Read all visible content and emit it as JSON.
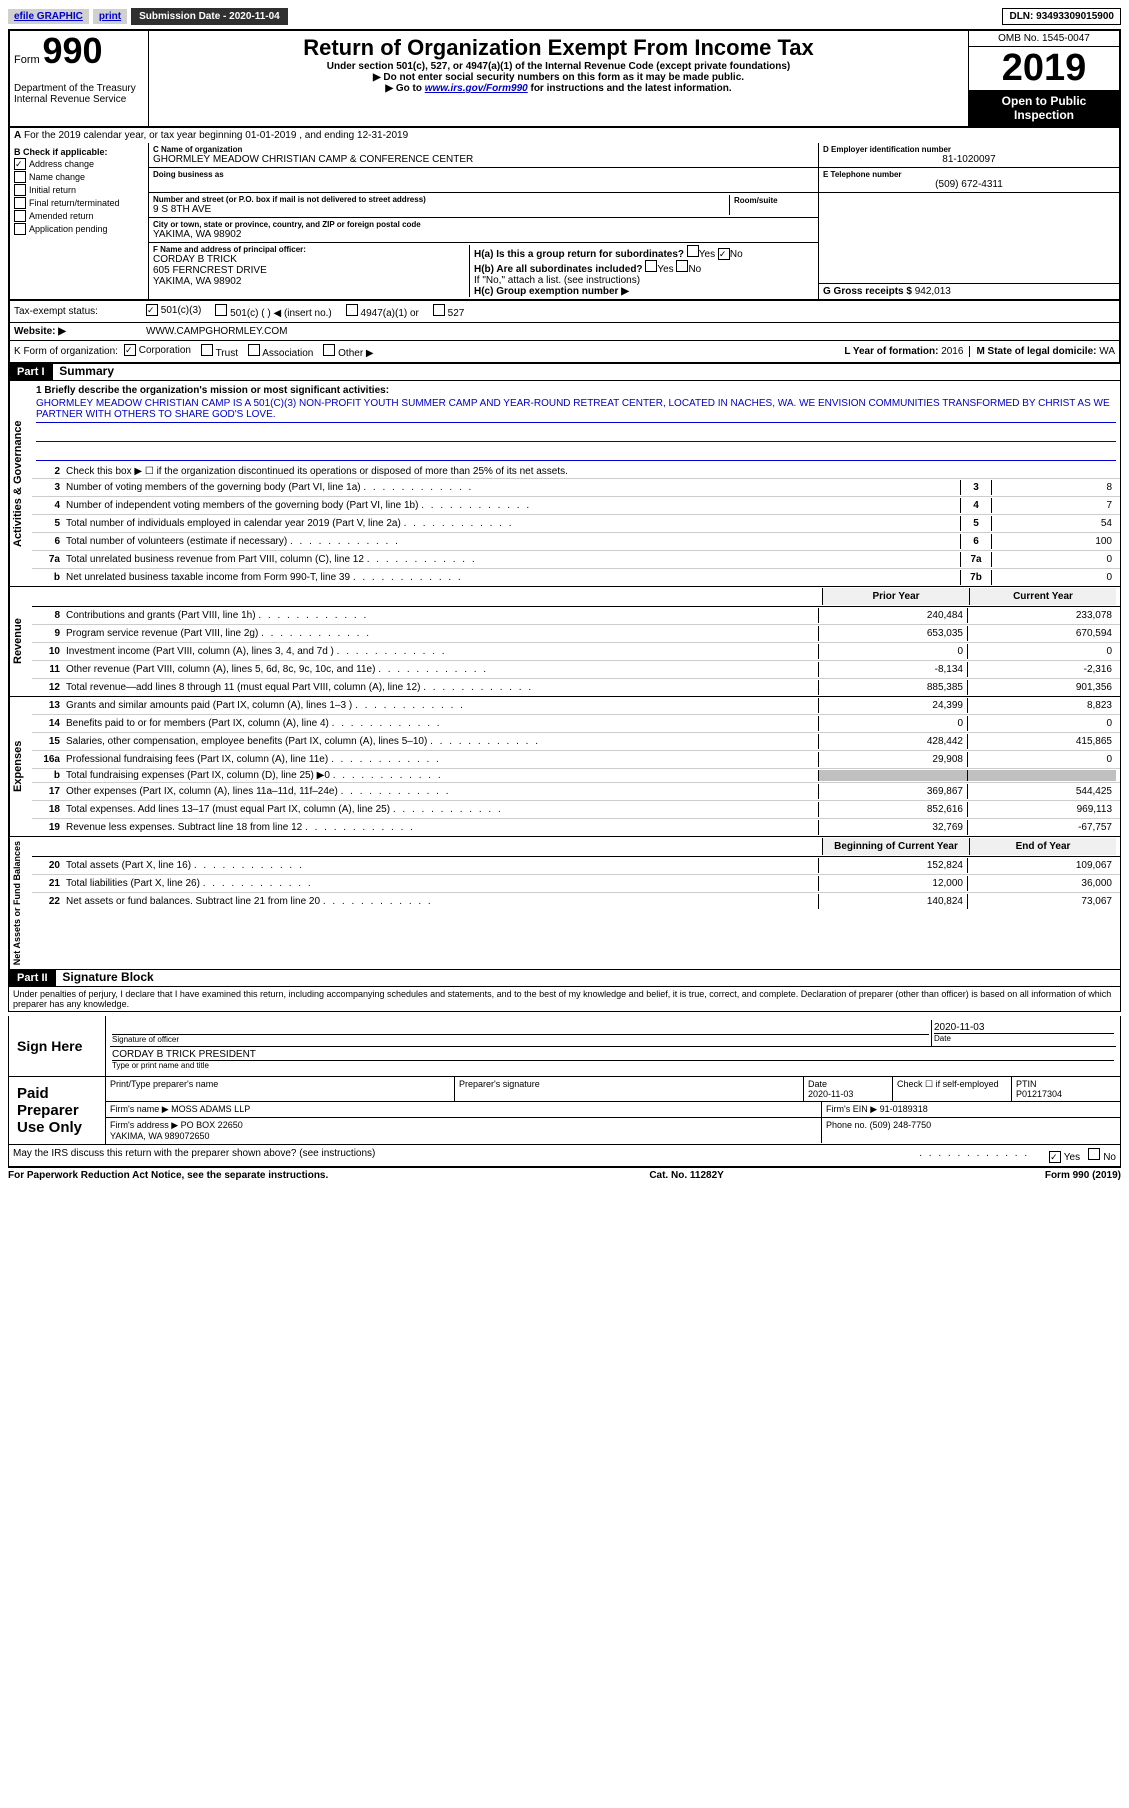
{
  "top": {
    "efile": "efile GRAPHIC",
    "print": "print",
    "sub_date_label": "Submission Date - 2020-11-04",
    "dln": "DLN: 93493309015900"
  },
  "header": {
    "form_label": "Form",
    "form_num": "990",
    "dept": "Department of the Treasury\nInternal Revenue Service",
    "title": "Return of Organization Exempt From Income Tax",
    "subtitle": "Under section 501(c), 527, or 4947(a)(1) of the Internal Revenue Code (except private foundations)",
    "arrow1": "▶ Do not enter social security numbers on this form as it may be made public.",
    "arrow2_pre": "▶ Go to ",
    "arrow2_link": "www.irs.gov/Form990",
    "arrow2_post": " for instructions and the latest information.",
    "omb": "OMB No. 1545-0047",
    "year": "2019",
    "open": "Open to Public Inspection"
  },
  "line_a": "For the 2019 calendar year, or tax year beginning 01-01-2019   , and ending 12-31-2019",
  "section_b": {
    "header": "B Check if applicable:",
    "items": [
      {
        "label": "Address change",
        "checked": true
      },
      {
        "label": "Name change",
        "checked": false
      },
      {
        "label": "Initial return",
        "checked": false
      },
      {
        "label": "Final return/terminated",
        "checked": false
      },
      {
        "label": "Amended return",
        "checked": false
      },
      {
        "label": "Application pending",
        "checked": false
      }
    ],
    "c_label": "C Name of organization",
    "c_name": "GHORMLEY MEADOW CHRISTIAN CAMP & CONFERENCE CENTER",
    "dba_label": "Doing business as",
    "addr_label": "Number and street (or P.O. box if mail is not delivered to street address)",
    "room_label": "Room/suite",
    "addr": "9 S 8TH AVE",
    "city_label": "City or town, state or province, country, and ZIP or foreign postal code",
    "city": "YAKIMA, WA  98902",
    "d_label": "D Employer identification number",
    "d_val": "81-1020097",
    "e_label": "E Telephone number",
    "e_val": "(509) 672-4311",
    "g_label": "G Gross receipts $",
    "g_val": "942,013",
    "f_label": "F  Name and address of principal officer:",
    "f_val": "CORDAY B TRICK\n605 FERNCREST DRIVE\nYAKIMA, WA  98902",
    "h_a": "H(a)  Is this a group return for subordinates?",
    "h_a_yes": "Yes",
    "h_a_no": "No",
    "h_b": "H(b)  Are all subordinates included?",
    "h_b_note": "If \"No,\" attach a list. (see instructions)",
    "h_c": "H(c)  Group exemption number ▶"
  },
  "tax_status": {
    "label": "Tax-exempt status:",
    "opts": [
      "501(c)(3)",
      "501(c) (  ) ◀ (insert no.)",
      "4947(a)(1) or",
      "527"
    ],
    "checked_idx": 0
  },
  "website": {
    "label": "Website: ▶",
    "val": "WWW.CAMPGHORMLEY.COM"
  },
  "k_line": {
    "label": "K Form of organization:",
    "opts": [
      "Corporation",
      "Trust",
      "Association",
      "Other ▶"
    ],
    "checked_idx": 0,
    "l_label": "L Year of formation:",
    "l_val": "2016",
    "m_label": "M State of legal domicile:",
    "m_val": "WA"
  },
  "part1": {
    "header": "Part I",
    "title": "Summary",
    "mission_label": "1  Briefly describe the organization's mission or most significant activities:",
    "mission": "GHORMLEY MEADOW CHRISTIAN CAMP IS A 501(C)(3) NON-PROFIT YOUTH SUMMER CAMP AND YEAR-ROUND RETREAT CENTER, LOCATED IN NACHES, WA. WE ENVISION COMMUNITIES TRANSFORMED BY CHRIST AS WE PARTNER WITH OTHERS TO SHARE GOD'S LOVE.",
    "governance": [
      {
        "n": "2",
        "desc": "Check this box ▶ ☐  if the organization discontinued its operations or disposed of more than 25% of its net assets.",
        "ref": "",
        "val": ""
      },
      {
        "n": "3",
        "desc": "Number of voting members of the governing body (Part VI, line 1a)",
        "ref": "3",
        "val": "8"
      },
      {
        "n": "4",
        "desc": "Number of independent voting members of the governing body (Part VI, line 1b)",
        "ref": "4",
        "val": "7"
      },
      {
        "n": "5",
        "desc": "Total number of individuals employed in calendar year 2019 (Part V, line 2a)",
        "ref": "5",
        "val": "54"
      },
      {
        "n": "6",
        "desc": "Total number of volunteers (estimate if necessary)",
        "ref": "6",
        "val": "100"
      },
      {
        "n": "7a",
        "desc": "Total unrelated business revenue from Part VIII, column (C), line 12",
        "ref": "7a",
        "val": "0"
      },
      {
        "n": "b",
        "desc": "Net unrelated business taxable income from Form 990-T, line 39",
        "ref": "7b",
        "val": "0"
      }
    ],
    "prior_hdr": "Prior Year",
    "curr_hdr": "Current Year",
    "revenue": [
      {
        "n": "8",
        "desc": "Contributions and grants (Part VIII, line 1h)",
        "p": "240,484",
        "c": "233,078"
      },
      {
        "n": "9",
        "desc": "Program service revenue (Part VIII, line 2g)",
        "p": "653,035",
        "c": "670,594"
      },
      {
        "n": "10",
        "desc": "Investment income (Part VIII, column (A), lines 3, 4, and 7d )",
        "p": "0",
        "c": "0"
      },
      {
        "n": "11",
        "desc": "Other revenue (Part VIII, column (A), lines 5, 6d, 8c, 9c, 10c, and 11e)",
        "p": "-8,134",
        "c": "-2,316"
      },
      {
        "n": "12",
        "desc": "Total revenue—add lines 8 through 11 (must equal Part VIII, column (A), line 12)",
        "p": "885,385",
        "c": "901,356"
      }
    ],
    "expenses": [
      {
        "n": "13",
        "desc": "Grants and similar amounts paid (Part IX, column (A), lines 1–3 )",
        "p": "24,399",
        "c": "8,823"
      },
      {
        "n": "14",
        "desc": "Benefits paid to or for members (Part IX, column (A), line 4)",
        "p": "0",
        "c": "0"
      },
      {
        "n": "15",
        "desc": "Salaries, other compensation, employee benefits (Part IX, column (A), lines 5–10)",
        "p": "428,442",
        "c": "415,865"
      },
      {
        "n": "16a",
        "desc": "Professional fundraising fees (Part IX, column (A), line 11e)",
        "p": "29,908",
        "c": "0"
      },
      {
        "n": "b",
        "desc": "Total fundraising expenses (Part IX, column (D), line 25) ▶0",
        "p": "",
        "c": "",
        "grey": true
      },
      {
        "n": "17",
        "desc": "Other expenses (Part IX, column (A), lines 11a–11d, 11f–24e)",
        "p": "369,867",
        "c": "544,425"
      },
      {
        "n": "18",
        "desc": "Total expenses. Add lines 13–17 (must equal Part IX, column (A), line 25)",
        "p": "852,616",
        "c": "969,113"
      },
      {
        "n": "19",
        "desc": "Revenue less expenses. Subtract line 18 from line 12",
        "p": "32,769",
        "c": "-67,757"
      }
    ],
    "net_hdr_p": "Beginning of Current Year",
    "net_hdr_c": "End of Year",
    "net": [
      {
        "n": "20",
        "desc": "Total assets (Part X, line 16)",
        "p": "152,824",
        "c": "109,067"
      },
      {
        "n": "21",
        "desc": "Total liabilities (Part X, line 26)",
        "p": "12,000",
        "c": "36,000"
      },
      {
        "n": "22",
        "desc": "Net assets or fund balances. Subtract line 21 from line 20",
        "p": "140,824",
        "c": "73,067"
      }
    ],
    "side_labels": {
      "gov": "Activities & Governance",
      "rev": "Revenue",
      "exp": "Expenses",
      "net": "Net Assets or Fund Balances"
    }
  },
  "part2": {
    "header": "Part II",
    "title": "Signature Block",
    "declaration": "Under penalties of perjury, I declare that I have examined this return, including accompanying schedules and statements, and to the best of my knowledge and belief, it is true, correct, and complete. Declaration of preparer (other than officer) is based on all information of which preparer has any knowledge.",
    "sign_here": "Sign Here",
    "sig_officer": "Signature of officer",
    "sig_date": "2020-11-03",
    "date_label": "Date",
    "officer_name": "CORDAY B TRICK  PRESIDENT",
    "type_label": "Type or print name and title",
    "paid": "Paid Preparer Use Only",
    "prep_name_label": "Print/Type preparer's name",
    "prep_sig_label": "Preparer's signature",
    "prep_date": "2020-11-03",
    "check_self": "Check ☐ if self-employed",
    "ptin_label": "PTIN",
    "ptin": "P01217304",
    "firm_name_label": "Firm's name    ▶",
    "firm_name": "MOSS ADAMS LLP",
    "firm_ein_label": "Firm's EIN ▶",
    "firm_ein": "91-0189318",
    "firm_addr_label": "Firm's address ▶",
    "firm_addr": "PO BOX 22650\nYAKIMA, WA  989072650",
    "phone_label": "Phone no.",
    "phone": "(509) 248-7750",
    "discuss": "May the IRS discuss this return with the preparer shown above? (see instructions)",
    "yes": "Yes",
    "no": "No"
  },
  "footer": {
    "left": "For Paperwork Reduction Act Notice, see the separate instructions.",
    "mid": "Cat. No. 11282Y",
    "right": "Form 990 (2019)"
  }
}
